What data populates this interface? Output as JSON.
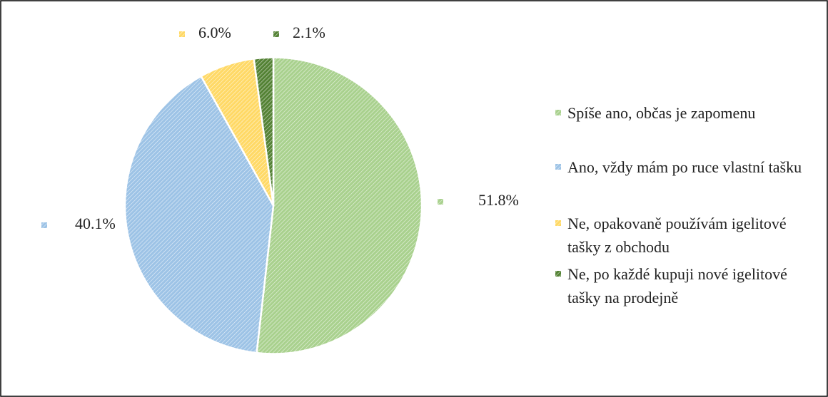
{
  "chart_data": {
    "type": "pie",
    "categories": [
      "Spíše ano, občas je zapomenu",
      "Ano, vždy mám po ruce vlastní tašku",
      "Ne, opakovaně používám igelitové tašky z obchodu",
      "Ne, po každé kupuji nové igelitové tašky na prodejně"
    ],
    "values": [
      51.8,
      40.1,
      6.0,
      2.1
    ],
    "value_labels": [
      "51.8%",
      "40.1%",
      "6.0%",
      "2.1%"
    ],
    "colors": [
      "#a9d18e",
      "#9dc3e6",
      "#ffd966",
      "#548235"
    ],
    "legend": "right"
  }
}
